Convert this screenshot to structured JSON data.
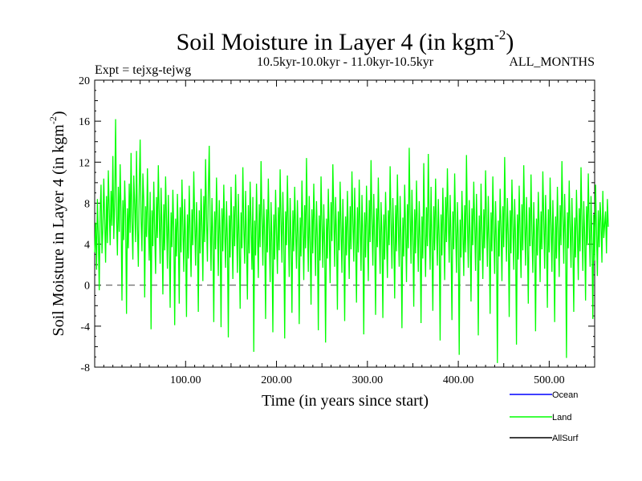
{
  "chart_data": {
    "type": "line",
    "title": "Soil Moisture in Layer 4 (in kgm",
    "title_sup": "-2",
    "title_suffix": ")",
    "subtitle_left": "Expt = tejxg-tejwg",
    "subtitle_center": "10.5kyr-10.0kyr - 11.0kyr-10.5kyr",
    "subtitle_right": "ALL_MONTHS",
    "xlabel": "Time (in years since start)",
    "ylabel": "Soil Moisture in Layer 4 (in kgm",
    "ylabel_sup": "-2",
    "ylabel_suffix": ")",
    "xlim": [
      0,
      550
    ],
    "ylim": [
      -8,
      20
    ],
    "x_ticks": [
      100,
      200,
      300,
      400,
      500
    ],
    "x_tick_labels": [
      "100.00",
      "200.00",
      "300.00",
      "400.00",
      "500.00"
    ],
    "y_ticks": [
      -8,
      -4,
      0,
      4,
      8,
      12,
      16,
      20
    ],
    "y_tick_labels": [
      "-8",
      "-4",
      "0",
      "4",
      "8",
      "12",
      "16",
      "20"
    ],
    "reference_line": 0,
    "legend": [
      {
        "name": "Ocean",
        "color": "#0000ff"
      },
      {
        "name": "Land",
        "color": "#00ff00"
      },
      {
        "name": "AllSurf",
        "color": "#000000"
      }
    ],
    "series": [
      {
        "name": "Land",
        "color": "#00ff00",
        "x_start": 0,
        "x_step": 1,
        "values": [
          3.2,
          6.1,
          1.5,
          8.4,
          4.9,
          -0.5,
          7.2,
          9.8,
          3.1,
          5.5,
          10.4,
          6.3,
          2.2,
          8.7,
          4.1,
          11.2,
          7.4,
          3.9,
          9.2,
          5.8,
          12.6,
          4.5,
          8.1,
          16.2,
          6.7,
          2.9,
          9.6,
          5.2,
          11.8,
          7.1,
          -1.5,
          8.3,
          4.4,
          10.2,
          6.8,
          -2.8,
          7.5,
          3.6,
          9.9,
          5.1,
          12.9,
          6.2,
          2.5,
          10.7,
          7.8,
          4.2,
          13.1,
          5.9,
          1.8,
          9.4,
          14.2,
          6.6,
          3.3,
          10.9,
          8.2,
          -1.2,
          7.7,
          4.7,
          11.4,
          6.1,
          2.4,
          9.1,
          -4.3,
          7.3,
          3.8,
          10.1,
          5.4,
          1.1,
          8.6,
          4.6,
          11.7,
          6.9,
          2.1,
          9.5,
          5.6,
          -0.9,
          7.9,
          3.4,
          10.6,
          6.4,
          1.6,
          8.8,
          4.3,
          -2.2,
          7.1,
          3.7,
          9.3,
          5.3,
          -3.9,
          6.5,
          2.8,
          8.9,
          4.8,
          -1.8,
          7.6,
          3.2,
          10.3,
          5.7,
          1.3,
          8.4,
          4.1,
          -3.1,
          6.9,
          2.6,
          9.7,
          5.1,
          0.8,
          7.4,
          3.9,
          11.1,
          6.2,
          1.9,
          8.1,
          4.5,
          -2.6,
          7.3,
          3.1,
          9.4,
          5.8,
          0.4,
          8.7,
          4.2,
          12.3,
          6.6,
          2.3,
          9.1,
          13.6,
          5.9,
          1.4,
          8.5,
          4.7,
          -3.6,
          7.2,
          3.5,
          10.5,
          6.1,
          0.9,
          8.3,
          4.9,
          -4.1,
          7.5,
          3.3,
          9.8,
          5.2,
          1.7,
          8.2,
          4.4,
          -5.1,
          6.8,
          2.7,
          9.6,
          5.5,
          0.6,
          7.7,
          3.8,
          10.8,
          6.4,
          1.2,
          8.9,
          4.6,
          -2.3,
          7.1,
          3.6,
          11.5,
          5.7,
          2.1,
          9.2,
          4.3,
          -1.4,
          7.8,
          3.1,
          10.1,
          5.9,
          1.5,
          8.6,
          -6.5,
          6.3,
          2.9,
          9.9,
          5.3,
          0.7,
          7.9,
          3.7,
          12.1,
          6.7,
          1.9,
          8.4,
          4.8,
          -3.3,
          7.4,
          3.2,
          10.4,
          5.6,
          0.3,
          8.1,
          4.1,
          -4.6,
          6.9,
          2.5,
          9.3,
          5.1,
          1.1,
          7.6,
          3.4,
          11.3,
          6.2,
          2.2,
          9.1,
          4.7,
          -5.2,
          7.2,
          3.9,
          10.7,
          5.8,
          0.8,
          8.5,
          4.4,
          -2.7,
          7.3,
          3.3,
          9.6,
          5.4,
          1.6,
          8.3,
          4.5,
          -3.8,
          6.6,
          2.8,
          10.2,
          5.7,
          0.5,
          7.8,
          3.6,
          12.4,
          6.1,
          1.3,
          8.7,
          4.2,
          -1.9,
          7.4,
          3.1,
          9.9,
          5.5,
          0.9,
          8.2,
          4.6,
          -4.4,
          6.8,
          2.4,
          10.6,
          5.9,
          1.7,
          7.9,
          3.8,
          -5.6,
          6.5,
          2.6,
          9.4,
          5.2,
          0.2,
          8.1,
          4.3,
          11.8,
          6.9,
          1.8,
          8.6,
          4.9,
          -2.4,
          7.2,
          3.4,
          10.1,
          5.6,
          1.2,
          8.4,
          4.1,
          -3.5,
          6.7,
          2.9,
          9.2,
          5.3,
          0.6,
          7.7,
          3.5,
          11.1,
          6.3,
          2.3,
          9.5,
          4.5,
          -1.7,
          7.6,
          3.2,
          10.3,
          5.8,
          1.4,
          8.8,
          4.7,
          -4.8,
          7.1,
          2.7,
          9.7,
          5.4,
          0.4,
          8.3,
          4.2,
          12.2,
          6.4,
          1.9,
          8.9,
          4.4,
          -2.9,
          7.5,
          3.7,
          10.5,
          5.7,
          1.1,
          8.1,
          4.8,
          -3.2,
          6.9,
          2.5,
          9.1,
          5.1,
          0.7,
          7.3,
          3.9,
          11.6,
          6.1,
          1.6,
          8.5,
          4.6,
          -1.3,
          7.8,
          3.3,
          10.8,
          5.9,
          1.8,
          8.7,
          4.3,
          -4.2,
          6.6,
          2.8,
          9.8,
          5.5,
          0.3,
          7.9,
          3.6,
          13.4,
          6.8,
          2.1,
          9.3,
          4.9,
          -2.1,
          7.4,
          3.1,
          10.2,
          5.6,
          1.3,
          8.2,
          4.5,
          -3.7,
          6.7,
          2.6,
          11.9,
          5.2,
          0.8,
          7.6,
          3.8,
          12.8,
          6.2,
          1.5,
          9.6,
          4.1,
          -2.5,
          7.7,
          3.4,
          10.4,
          5.8,
          1.9,
          8.4,
          4.7,
          -5.4,
          6.9,
          2.9,
          9.5,
          5.3,
          0.5,
          8.6,
          4.2,
          11.4,
          6.5,
          2.2,
          8.8,
          4.4,
          -3.4,
          7.2,
          3.5,
          10.9,
          5.7,
          1.2,
          8.1,
          4.6,
          -6.8,
          6.4,
          2.7,
          9.2,
          5.4,
          0.9,
          7.8,
          3.2,
          12.7,
          6.1,
          1.7,
          8.3,
          4.8,
          -1.6,
          7.5,
          3.9,
          10.1,
          5.9,
          1.4,
          8.9,
          4.3,
          -4.9,
          6.8,
          2.4,
          9.9,
          5.2,
          0.6,
          7.4,
          3.6,
          11.2,
          6.6,
          1.8,
          8.7,
          4.5,
          -2.8,
          7.1,
          3.3,
          10.6,
          5.5,
          1.1,
          8.2,
          4.1,
          -7.6,
          6.3,
          2.8,
          9.4,
          5.6,
          0.4,
          7.7,
          3.7,
          12.5,
          6.7,
          2.3,
          8.5,
          4.9,
          -3.1,
          7.3,
          3.1,
          10.3,
          5.8,
          1.5,
          8.4,
          4.4,
          -5.8,
          6.9,
          2.5,
          9.7,
          5.1,
          0.7,
          7.9,
          3.4,
          11.7,
          6.2,
          1.9,
          8.6,
          4.6,
          -1.8,
          7.6,
          3.8,
          10.8,
          5.3,
          1.2,
          8.1,
          4.2,
          -4.5,
          6.5,
          2.9,
          9.1,
          5.7,
          0.3,
          7.2,
          3.5,
          11.1,
          6.4,
          1.6,
          8.8,
          4.7,
          -2.2,
          7.4,
          3.2,
          10.5,
          5.9,
          1.3,
          8.3,
          4.3,
          -3.6,
          6.7,
          2.6,
          9.6,
          5.4,
          0.8,
          7.8,
          3.9,
          12.1,
          6.8,
          2.1,
          8.9,
          4.5,
          -7.1,
          7.1,
          3.6,
          10.2,
          5.6,
          1.7,
          8.5,
          4.1,
          -2.6,
          6.6,
          2.7,
          9.3,
          5.2,
          0.5,
          7.5,
          3.3,
          11.5,
          6.3,
          1.4,
          8.2,
          4.8,
          -1.5,
          7.7,
          3.9,
          10.9,
          5.8,
          1.8,
          8.7,
          4.4,
          -3.3,
          6.9,
          2.4,
          9.8,
          5.3,
          0.9,
          7.3,
          3.7,
          8.1,
          6.1,
          2.2,
          9.2,
          4.6,
          5.9,
          7.2,
          3.1,
          8.4,
          5.7
        ]
      }
    ]
  }
}
